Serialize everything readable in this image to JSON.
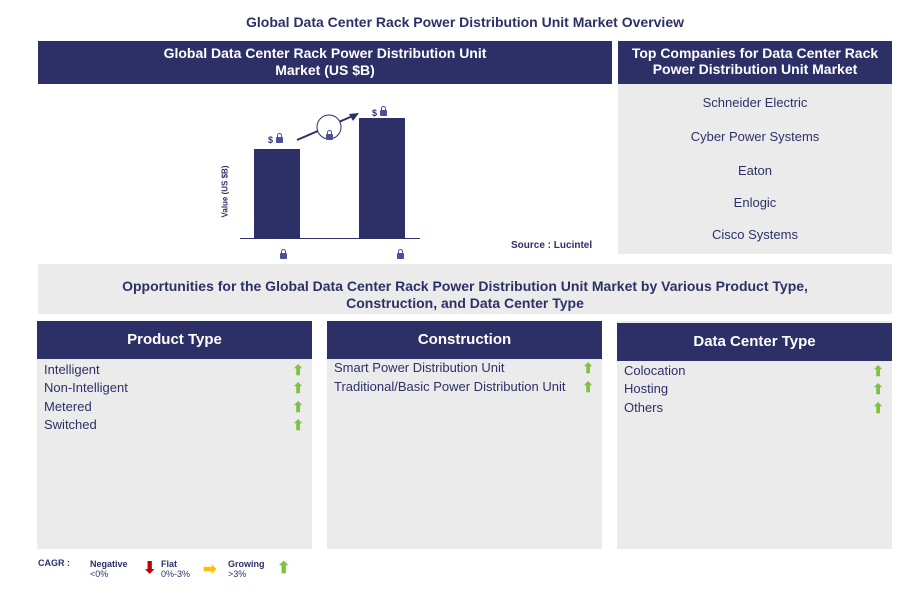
{
  "title": "Global Data Center Rack Power Distribution Unit Market Overview",
  "chart_panel": {
    "title": "Global Data Center Rack Power Distribution Unit Market (US $B)",
    "source": "Source : Lucintel"
  },
  "chart_data": {
    "type": "bar",
    "title": "Global Data Center Rack Power Distribution Unit Market (US $B)",
    "ylabel": "Value (US $B)",
    "categories": [
      "locked",
      "locked"
    ],
    "values": [
      null,
      null
    ],
    "relative_heights": [
      0.71,
      0.96
    ],
    "value_labels": [
      "$",
      "$"
    ]
  },
  "companies": {
    "title": "Top Companies for Data Center Rack Power Distribution Unit Market",
    "items": [
      "Schneider Electric",
      "Cyber Power Systems",
      "Eaton",
      "Enlogic",
      "Cisco Systems"
    ]
  },
  "opportunities": {
    "title": "Opportunities for the Global Data Center Rack Power Distribution Unit Market by Various Product Type, Construction, and Data Center Type"
  },
  "columns": [
    {
      "title": "Product Type",
      "items": [
        "Intelligent",
        "Non-Intelligent",
        "Metered",
        "Switched"
      ]
    },
    {
      "title": "Construction",
      "items": [
        "Smart Power Distribution Unit",
        "Traditional/Basic Power Distribution Unit"
      ]
    },
    {
      "title": "Data Center Type",
      "items": [
        "Colocation",
        "Hosting",
        "Others"
      ]
    }
  ],
  "legend": {
    "label": "CAGR :",
    "negative": "Negative",
    "negative_range": "<0%",
    "flat": "Flat",
    "flat_range": "0%-3%",
    "growing": "Growing",
    "growing_range": ">3%"
  },
  "colors": {
    "navy": "#2d3067",
    "growing": "#7dc243",
    "negative": "#c00000",
    "flat": "#ffc000"
  }
}
